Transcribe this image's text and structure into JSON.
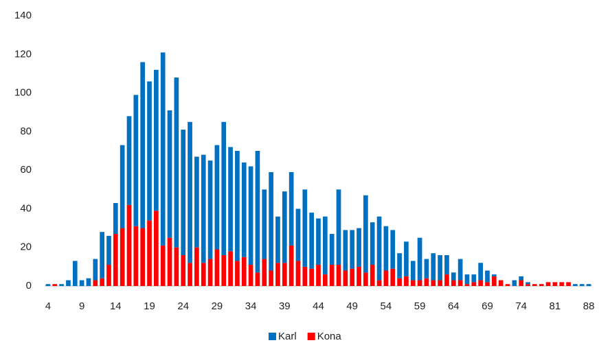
{
  "chart_data": {
    "type": "stacked_bar",
    "categories": [
      "4",
      null,
      null,
      null,
      null,
      "9",
      null,
      null,
      null,
      null,
      "14",
      null,
      null,
      null,
      null,
      "19",
      null,
      null,
      null,
      null,
      "24",
      null,
      null,
      null,
      null,
      "29",
      null,
      null,
      null,
      null,
      "34",
      null,
      null,
      null,
      null,
      "39",
      null,
      null,
      null,
      null,
      "44",
      null,
      null,
      null,
      null,
      "49",
      null,
      null,
      null,
      null,
      "54",
      null,
      null,
      null,
      null,
      "59",
      null,
      null,
      null,
      null,
      "64",
      null,
      null,
      null,
      null,
      "69",
      null,
      null,
      null,
      null,
      "74",
      null,
      null,
      null,
      null,
      "81",
      null,
      null,
      null,
      null,
      "88"
    ],
    "series": [
      {
        "name": "Kona",
        "color": "#ff0000",
        "values": [
          0,
          1,
          0,
          0,
          0,
          0,
          0,
          3,
          4,
          11,
          27,
          30,
          42,
          31,
          30,
          34,
          39,
          21,
          25,
          20,
          16,
          12,
          20,
          12,
          14,
          19,
          16,
          18,
          13,
          15,
          11,
          7,
          14,
          8,
          12,
          12,
          21,
          13,
          10,
          9,
          11,
          6,
          11,
          11,
          8,
          9,
          10,
          7,
          11,
          3,
          8,
          9,
          4,
          5,
          3,
          3,
          4,
          3,
          3,
          6,
          3,
          3,
          1,
          2,
          3,
          2,
          5,
          3,
          1,
          0,
          3,
          1,
          1,
          1,
          2,
          2,
          2,
          2,
          0,
          0,
          0
        ]
      },
      {
        "name": "Karl",
        "color": "#0070c0",
        "values": [
          1,
          0,
          1,
          3,
          13,
          3,
          4,
          11,
          24,
          15,
          16,
          43,
          46,
          68,
          86,
          72,
          73,
          100,
          66,
          88,
          65,
          73,
          47,
          56,
          51,
          54,
          69,
          54,
          57,
          49,
          51,
          63,
          36,
          51,
          24,
          37,
          38,
          27,
          40,
          29,
          24,
          30,
          16,
          39,
          21,
          20,
          20,
          40,
          22,
          33,
          23,
          20,
          13,
          18,
          10,
          22,
          10,
          14,
          13,
          10,
          4,
          11,
          5,
          4,
          9,
          6,
          1,
          0,
          0,
          3,
          2,
          1,
          0,
          0,
          0,
          0,
          0,
          0,
          1,
          1,
          1
        ]
      }
    ],
    "legend_order": [
      1,
      0
    ],
    "ylim": [
      0,
      140
    ],
    "yticks": [
      0,
      20,
      40,
      60,
      80,
      100,
      120,
      140
    ],
    "grid": false
  }
}
